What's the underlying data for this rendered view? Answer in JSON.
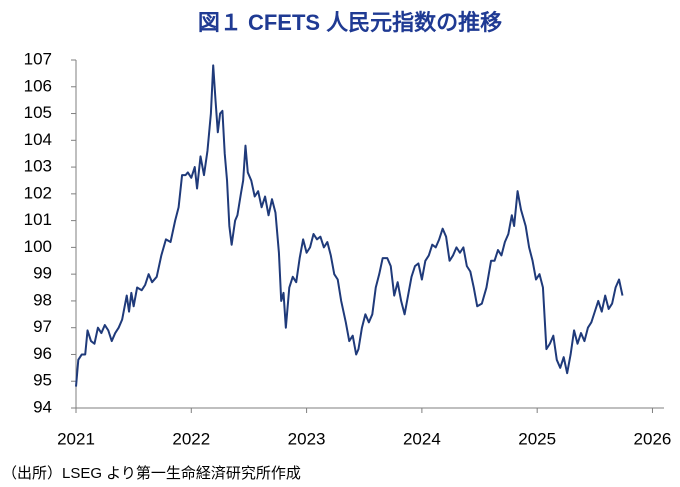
{
  "chart_data": {
    "type": "line",
    "title": "図１ CFETS 人民元指数の推移",
    "source": "（出所）LSEG より第一生命経済研究所作成",
    "color": "#1f3a7a",
    "x": [
      2021.0,
      2021.02,
      2021.05,
      2021.08,
      2021.1,
      2021.13,
      2021.16,
      2021.19,
      2021.22,
      2021.25,
      2021.28,
      2021.31,
      2021.34,
      2021.37,
      2021.4,
      2021.44,
      2021.46,
      2021.48,
      2021.5,
      2021.53,
      2021.57,
      2021.6,
      2021.63,
      2021.66,
      2021.7,
      2021.74,
      2021.78,
      2021.82,
      2021.86,
      2021.89,
      2021.92,
      2021.95,
      2021.97,
      2022.0,
      2022.03,
      2022.05,
      2022.08,
      2022.11,
      2022.14,
      2022.17,
      2022.19,
      2022.21,
      2022.23,
      2022.25,
      2022.27,
      2022.29,
      2022.31,
      2022.33,
      2022.35,
      2022.38,
      2022.4,
      2022.43,
      2022.45,
      2022.47,
      2022.49,
      2022.52,
      2022.55,
      2022.58,
      2022.61,
      2022.64,
      2022.67,
      2022.7,
      2022.73,
      2022.76,
      2022.78,
      2022.8,
      2022.82,
      2022.85,
      2022.88,
      2022.91,
      2022.94,
      2022.97,
      2023.0,
      2023.03,
      2023.06,
      2023.09,
      2023.12,
      2023.15,
      2023.18,
      2023.21,
      2023.24,
      2023.27,
      2023.3,
      2023.34,
      2023.37,
      2023.4,
      2023.43,
      2023.45,
      2023.48,
      2023.51,
      2023.54,
      2023.57,
      2023.6,
      2023.63,
      2023.66,
      2023.7,
      2023.73,
      2023.76,
      2023.79,
      2023.82,
      2023.85,
      2023.88,
      2023.91,
      2023.94,
      2023.97,
      2024.0,
      2024.03,
      2024.06,
      2024.09,
      2024.12,
      2024.15,
      2024.18,
      2024.21,
      2024.24,
      2024.27,
      2024.3,
      2024.33,
      2024.36,
      2024.39,
      2024.42,
      2024.45,
      2024.48,
      2024.52,
      2024.56,
      2024.6,
      2024.63,
      2024.66,
      2024.69,
      2024.72,
      2024.75,
      2024.78,
      2024.8,
      2024.83,
      2024.86,
      2024.9,
      2024.93,
      2024.96,
      2024.99,
      2025.02,
      2025.05,
      2025.08,
      2025.11,
      2025.14,
      2025.17,
      2025.2,
      2025.23,
      2025.26,
      2025.29,
      2025.32,
      2025.35,
      2025.38,
      2025.41,
      2025.44,
      2025.47,
      2025.5,
      2025.53,
      2025.56,
      2025.59,
      2025.62,
      2025.65,
      2025.68,
      2025.71,
      2025.74
    ],
    "values": [
      94.8,
      95.8,
      96.0,
      96.0,
      96.9,
      96.5,
      96.4,
      97.0,
      96.8,
      97.1,
      96.9,
      96.5,
      96.8,
      97.0,
      97.3,
      98.2,
      97.6,
      98.3,
      97.8,
      98.5,
      98.4,
      98.6,
      99.0,
      98.7,
      98.9,
      99.7,
      100.3,
      100.2,
      101.0,
      101.5,
      102.7,
      102.7,
      102.8,
      102.6,
      103.0,
      102.2,
      103.4,
      102.7,
      103.6,
      105.0,
      106.8,
      105.5,
      104.3,
      105.0,
      105.1,
      103.5,
      102.5,
      100.8,
      100.1,
      101.0,
      101.2,
      102.0,
      102.5,
      103.8,
      102.8,
      102.5,
      101.9,
      102.1,
      101.5,
      101.9,
      101.2,
      101.8,
      101.3,
      99.8,
      98.0,
      98.3,
      97.0,
      98.5,
      98.9,
      98.7,
      99.6,
      100.3,
      99.8,
      100.0,
      100.5,
      100.3,
      100.4,
      100.0,
      100.2,
      99.7,
      99.0,
      98.8,
      98.0,
      97.2,
      96.5,
      96.7,
      96.0,
      96.2,
      97.0,
      97.5,
      97.2,
      97.5,
      98.5,
      99.0,
      99.6,
      99.6,
      99.3,
      98.2,
      98.7,
      98.0,
      97.5,
      98.2,
      98.9,
      99.3,
      99.4,
      98.8,
      99.5,
      99.7,
      100.1,
      100.0,
      100.3,
      100.7,
      100.4,
      99.5,
      99.7,
      100.0,
      99.8,
      100.0,
      99.3,
      99.1,
      98.5,
      97.8,
      97.9,
      98.5,
      99.5,
      99.5,
      99.9,
      99.7,
      100.2,
      100.5,
      101.2,
      100.8,
      102.1,
      101.4,
      100.8,
      100.0,
      99.5,
      98.8,
      99.0,
      98.5,
      96.2,
      96.4,
      96.7,
      95.8,
      95.5,
      95.9,
      95.3,
      96.0,
      96.9,
      96.4,
      96.8,
      96.5,
      97.0,
      97.2,
      97.6,
      98.0,
      97.6,
      98.2,
      97.7,
      97.9,
      98.5,
      98.8,
      98.2
    ],
    "xlim": [
      2021,
      2026.1
    ],
    "xticks": [
      2021,
      2022,
      2023,
      2024,
      2025,
      2026
    ],
    "ylim": [
      94,
      107
    ],
    "yticks": [
      94,
      95,
      96,
      97,
      98,
      99,
      100,
      101,
      102,
      103,
      104,
      105,
      106,
      107
    ],
    "grid": false
  }
}
